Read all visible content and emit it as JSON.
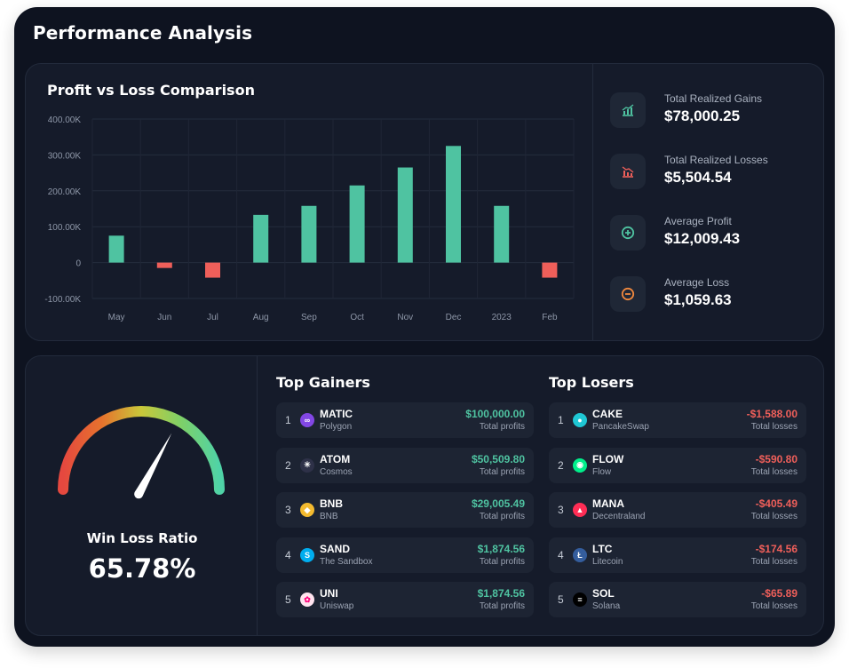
{
  "app": {
    "title": "Performance Analysis"
  },
  "chart": {
    "title": "Profit vs Loss Comparison",
    "y_ticks": [
      "400.00K",
      "300.00K",
      "200.00K",
      "100.00K",
      "0",
      "-100.00K"
    ]
  },
  "chart_data": {
    "type": "bar",
    "title": "Profit vs Loss Comparison",
    "categories": [
      "May",
      "Jun",
      "Jul",
      "Aug",
      "Sep",
      "Oct",
      "Nov",
      "Dec",
      "2023",
      "Feb"
    ],
    "values": [
      75000,
      -15000,
      -42000,
      133000,
      158000,
      215000,
      265000,
      325000,
      158000,
      -42000
    ],
    "ylim": [
      -100000,
      400000
    ],
    "grid": true,
    "colors": {
      "positive": "#4fc3a1",
      "negative": "#ef5f5a"
    }
  },
  "stats": [
    {
      "label": "Total Realized Gains",
      "value": "$78,000.25",
      "icon": "chart-up-icon",
      "color": "#4fc3a1"
    },
    {
      "label": "Total Realized Losses",
      "value": "$5,504.54",
      "icon": "chart-down-icon",
      "color": "#ef5f5a"
    },
    {
      "label": "Average Profit",
      "value": "$12,009.43",
      "icon": "plus-circle-icon",
      "color": "#4fc3a1"
    },
    {
      "label": "Average Loss",
      "value": "$1,059.63",
      "icon": "minus-circle-icon",
      "color": "#f0883e"
    }
  ],
  "gauge": {
    "label": "Win Loss Ratio",
    "value": "65.78%",
    "ratio": 0.6578
  },
  "gainers": {
    "title": "Top Gainers",
    "items": [
      {
        "rank": "1",
        "symbol": "MATIC",
        "name": "Polygon",
        "amount": "$100,000.00",
        "sub": "Total profits",
        "icon": "polygon-icon",
        "color": "#8247e5"
      },
      {
        "rank": "2",
        "symbol": "ATOM",
        "name": "Cosmos",
        "amount": "$50,509.80",
        "sub": "Total profits",
        "icon": "cosmos-icon",
        "color": "#2e3148"
      },
      {
        "rank": "3",
        "symbol": "BNB",
        "name": "BNB",
        "amount": "$29,005.49",
        "sub": "Total profits",
        "icon": "bnb-icon",
        "color": "#f3ba2f"
      },
      {
        "rank": "4",
        "symbol": "SAND",
        "name": "The Sandbox",
        "amount": "$1,874.56",
        "sub": "Total profits",
        "icon": "sandbox-icon",
        "color": "#00adef"
      },
      {
        "rank": "5",
        "symbol": "UNI",
        "name": "Uniswap",
        "amount": "$1,874.56",
        "sub": "Total profits",
        "icon": "uniswap-icon",
        "color": "#ffe4ef"
      }
    ]
  },
  "losers": {
    "title": "Top Losers",
    "items": [
      {
        "rank": "1",
        "symbol": "CAKE",
        "name": "PancakeSwap",
        "amount": "-$1,588.00",
        "sub": "Total losses",
        "icon": "pancakeswap-icon",
        "color": "#1fc7d4"
      },
      {
        "rank": "2",
        "symbol": "FLOW",
        "name": "Flow",
        "amount": "-$590.80",
        "sub": "Total losses",
        "icon": "flow-icon",
        "color": "#00ef8b"
      },
      {
        "rank": "3",
        "symbol": "MANA",
        "name": "Decentraland",
        "amount": "-$405.49",
        "sub": "Total losses",
        "icon": "decentraland-icon",
        "color": "#ff2d55"
      },
      {
        "rank": "4",
        "symbol": "LTC",
        "name": "Litecoin",
        "amount": "-$174.56",
        "sub": "Total losses",
        "icon": "litecoin-icon",
        "color": "#345d9d"
      },
      {
        "rank": "5",
        "symbol": "SOL",
        "name": "Solana",
        "amount": "-$65.89",
        "sub": "Total losses",
        "icon": "solana-icon",
        "color": "#000000"
      }
    ]
  }
}
